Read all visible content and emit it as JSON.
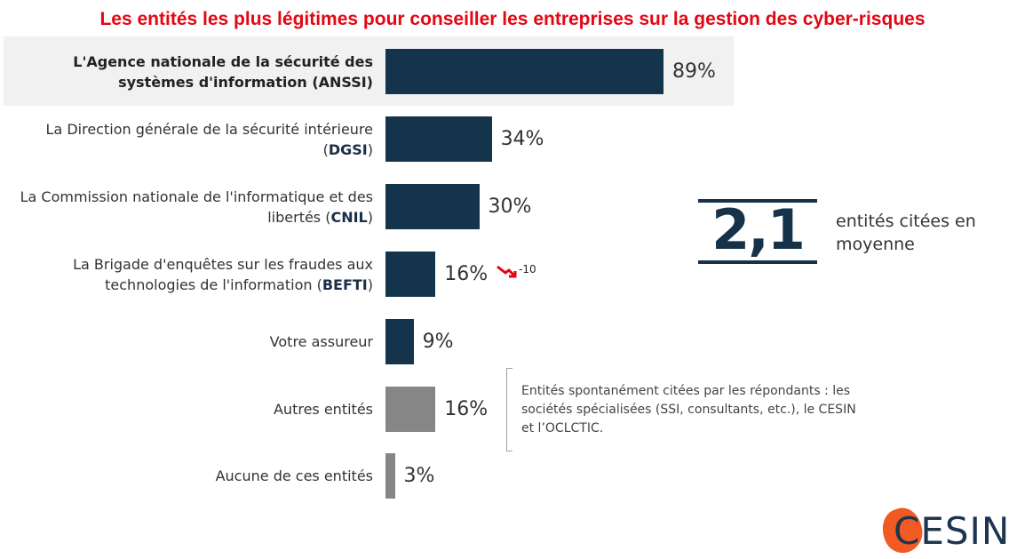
{
  "chart_data": {
    "type": "bar",
    "orientation": "horizontal",
    "title": "Les entités les plus légitimes pour conseiller les entreprises sur la gestion des cyber-risques",
    "categories": [
      {
        "pre": "L'Agence nationale de la sécurité des systèmes d'information (ANSSI)",
        "abbr": "",
        "post": ""
      },
      {
        "pre": "La Direction générale de la sécurité intérieure (",
        "abbr": "DGSI",
        "post": ")"
      },
      {
        "pre": "La Commission nationale de l'informatique et des libertés (",
        "abbr": "CNIL",
        "post": ")"
      },
      {
        "pre": "La Brigade d'enquêtes sur les fraudes aux technologies de l'information (",
        "abbr": "BEFTI",
        "post": ")"
      },
      {
        "pre": "Votre assureur",
        "abbr": "",
        "post": ""
      },
      {
        "pre": "Autres entités",
        "abbr": "",
        "post": ""
      },
      {
        "pre": "Aucune de ces entités",
        "abbr": "",
        "post": ""
      }
    ],
    "values": [
      89,
      34,
      30,
      16,
      9,
      16,
      3
    ],
    "value_labels": [
      "89%",
      "34%",
      "30%",
      "16%",
      "9%",
      "16%",
      "3%"
    ],
    "xlim": [
      0,
      100
    ],
    "highlighted_index": 0,
    "colors": {
      "primary": "#14344c",
      "other": "#868686",
      "highlight_bg": "#f1f1f1",
      "title": "#e30613",
      "trend": "#e30613"
    },
    "bar_color_keys": [
      "primary",
      "primary",
      "primary",
      "primary",
      "primary",
      "other",
      "other"
    ],
    "annotations": [
      {
        "category_index": 3,
        "trend": "down",
        "text": "-10"
      }
    ],
    "note": "Entités spontanément citées par les répondants : les sociétés spécialisées (SSI, consultants, etc.), le CESIN et l’OCLCTIC.",
    "summary": {
      "value": "2,1",
      "caption": "entités citées en moyenne"
    }
  },
  "logo": {
    "text": "CESIN",
    "color": "#f15a22"
  }
}
